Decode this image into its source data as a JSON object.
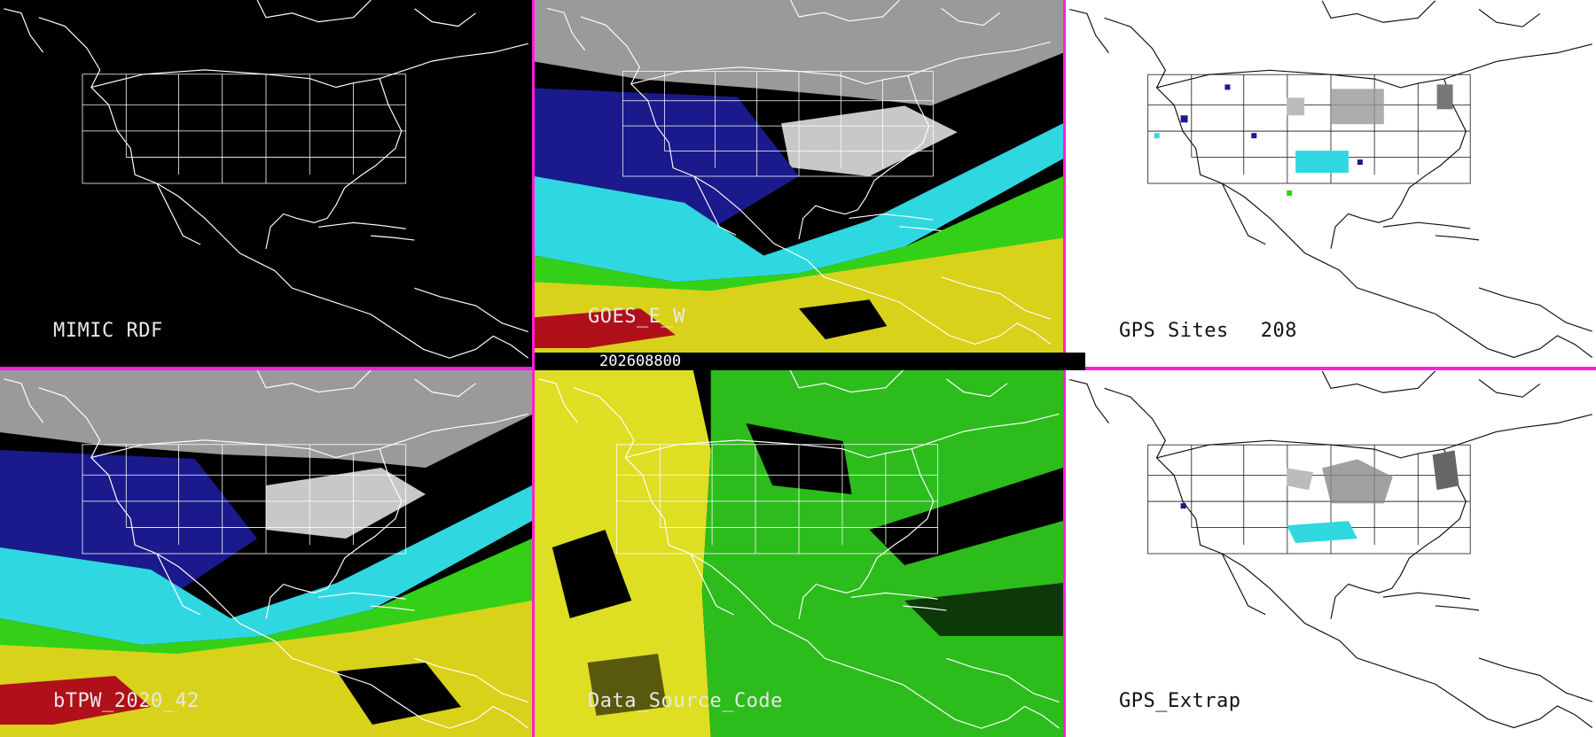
{
  "panels": [
    {
      "id": "mimic-rdf",
      "label": "MIMIC RDF",
      "theme": "dark"
    },
    {
      "id": "goes-ew",
      "label": "GOES_E_W",
      "theme": "dark"
    },
    {
      "id": "gps-sites",
      "label": "GPS Sites",
      "count": "208",
      "theme": "light"
    },
    {
      "id": "btpw",
      "label": "bTPW_2020_42",
      "theme": "dark"
    },
    {
      "id": "data-source",
      "label": "Data_Source_Code",
      "theme": "dark"
    },
    {
      "id": "gps-extrap",
      "label": "GPS_Extrap",
      "theme": "light"
    }
  ],
  "timestamp": "202608800",
  "colors": {
    "divider": "#ff1fd6",
    "tpw_gray": "#bdbdbd",
    "tpw_navy": "#1a1a8c",
    "tpw_cyan": "#2fd8e0",
    "tpw_green": "#34d018",
    "tpw_yellow": "#d8d21a",
    "tpw_red": "#b0101a",
    "source_yellow": "#dede22",
    "source_green": "#2cbc1c"
  }
}
